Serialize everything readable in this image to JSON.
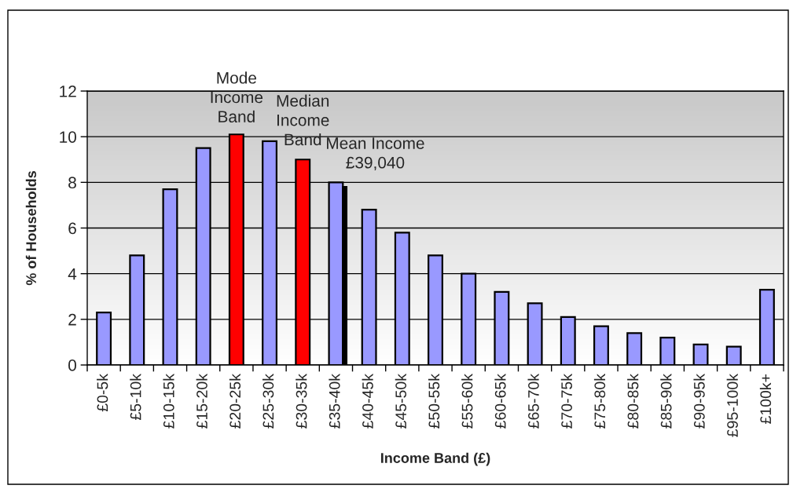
{
  "chart_data": {
    "type": "bar",
    "xlabel": "Income Band (£)",
    "ylabel": "% of Households",
    "categories": [
      "£0-5k",
      "£5-10k",
      "£10-15k",
      "£15-20k",
      "£20-25k",
      "£25-30k",
      "£30-35k",
      "£35-40k",
      "£40-45k",
      "£45-50k",
      "£50-55k",
      "£55-60k",
      "£60-65k",
      "£65-70k",
      "£70-75k",
      "£75-80k",
      "£80-85k",
      "£85-90k",
      "£90-95k",
      "£95-100k",
      "£100k+"
    ],
    "series": [
      {
        "colors": [
          "#9999ff",
          "#9999ff",
          "#9999ff",
          "#9999ff",
          "#ff0000",
          "#9999ff",
          "#ff0000",
          "#9999ff",
          "#9999ff",
          "#9999ff",
          "#9999ff",
          "#9999ff",
          "#9999ff",
          "#9999ff",
          "#9999ff",
          "#9999ff",
          "#9999ff",
          "#9999ff",
          "#9999ff",
          "#9999ff",
          "#9999ff"
        ],
        "values": [
          2.3,
          4.8,
          7.7,
          9.5,
          10.1,
          9.8,
          9.0,
          8.0,
          6.8,
          5.8,
          4.8,
          4.0,
          3.2,
          2.7,
          2.1,
          1.7,
          1.4,
          1.2,
          0.9,
          0.8,
          3.3
        ]
      },
      {
        "color": "#000000",
        "values": [
          null,
          null,
          null,
          null,
          null,
          null,
          null,
          7.8,
          null,
          null,
          null,
          null,
          null,
          null,
          null,
          null,
          null,
          null,
          null,
          null,
          null
        ]
      }
    ],
    "ylim": [
      0,
      12
    ],
    "yticks": [
      0,
      2,
      4,
      6,
      8,
      10,
      12
    ],
    "grid": "y",
    "annotations": [
      {
        "text": "Mode\nIncome\nBand",
        "x": "£20-25k",
        "y": 10.1
      },
      {
        "text": "Median\nIncome\nBand",
        "x": "£30-35k",
        "y": 9.0
      },
      {
        "text": "Mean Income\n£39,040",
        "x": "£35-40k",
        "y": 7.8
      }
    ]
  }
}
